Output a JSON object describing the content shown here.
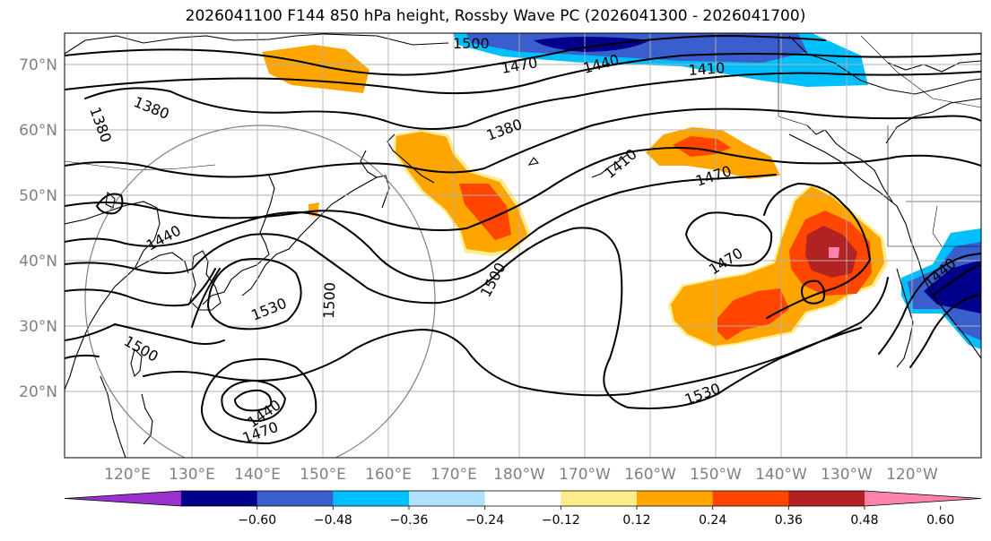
{
  "title": "2026041100 F144 850 hPa height, Rossby Wave PC (2026041300 - 2026041700)",
  "lat_labels": [
    "70°N",
    "60°N",
    "50°N",
    "40°N",
    "30°N",
    "20°N"
  ],
  "lon_labels": [
    "120°E",
    "130°E",
    "140°E",
    "150°E",
    "160°E",
    "170°E",
    "180°W",
    "170°W",
    "160°W",
    "150°W",
    "140°W",
    "130°W",
    "120°W"
  ],
  "colorbar": {
    "ticks": [
      "−0.60",
      "−0.48",
      "−0.36",
      "−0.24",
      "−0.12",
      "0.12",
      "0.24",
      "0.36",
      "0.48",
      "0.60"
    ],
    "colors": [
      "#9932cc",
      "#00008b",
      "#3a5fcd",
      "#00bfff",
      "#b0e2ff",
      "#ffffff",
      "#ffec8b",
      "#ffa500",
      "#ff4500",
      "#b22222",
      "#ff82ab"
    ]
  },
  "contour_labels": [
    {
      "text": "1500",
      "name": "contour-label-1500-arctic"
    },
    {
      "text": "1470",
      "name": "contour-label-1470-arctic"
    },
    {
      "text": "1440",
      "name": "contour-label-1440-arctic"
    },
    {
      "text": "1410",
      "name": "contour-label-1410-arctic"
    },
    {
      "text": "1380",
      "name": "contour-label-1380-west"
    },
    {
      "text": "1380",
      "name": "contour-label-1380-siberia"
    },
    {
      "text": "1380",
      "name": "contour-label-1380-bering"
    },
    {
      "text": "1410",
      "name": "contour-label-1410-gulf"
    },
    {
      "text": "1470",
      "name": "contour-label-1470-gulf"
    },
    {
      "text": "1440",
      "name": "contour-label-1440-asia"
    },
    {
      "text": "1530",
      "name": "contour-label-1530-japan"
    },
    {
      "text": "1500",
      "name": "contour-label-1500-pacific"
    },
    {
      "text": "1500",
      "name": "contour-label-1500-dateline"
    },
    {
      "text": "1500",
      "name": "contour-label-1500-taiwan"
    },
    {
      "text": "1470",
      "name": "contour-label-1470-trough"
    },
    {
      "text": "1440",
      "name": "contour-label-1440-california"
    },
    {
      "text": "1530",
      "name": "contour-label-1530-subtropical"
    },
    {
      "text": "1440",
      "name": "contour-label-1440-philippine"
    },
    {
      "text": "1470",
      "name": "contour-label-1470-philippine"
    }
  ]
}
